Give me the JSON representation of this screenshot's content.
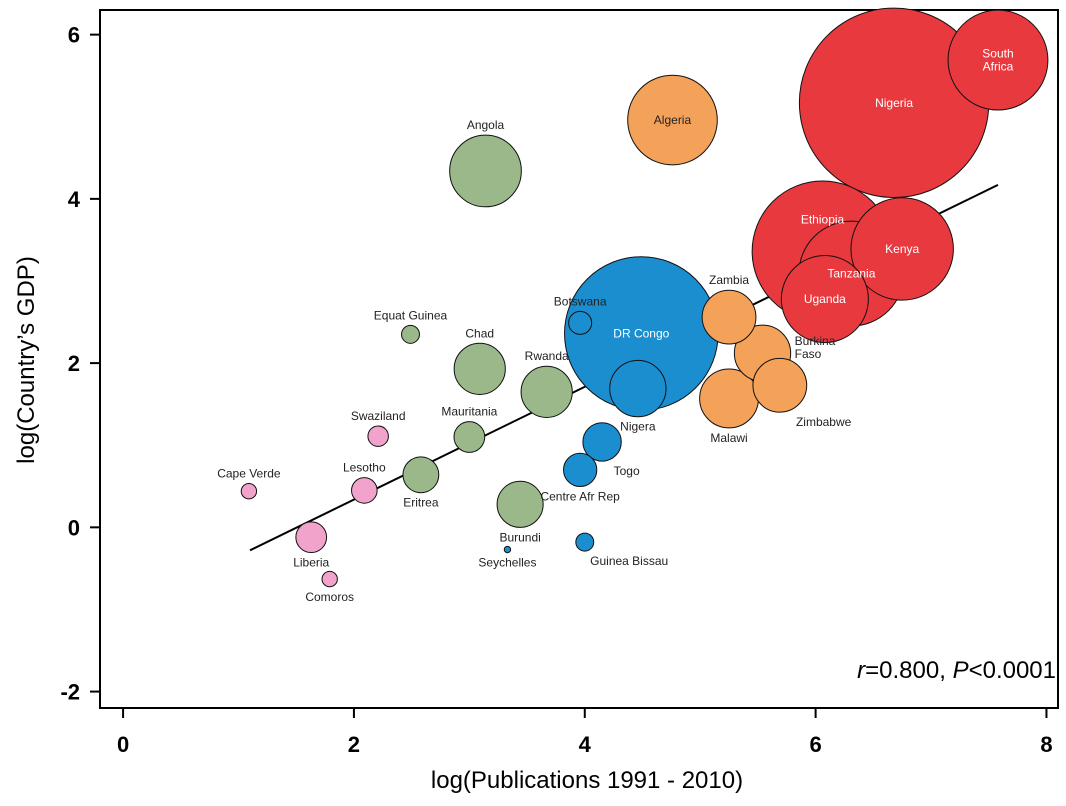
{
  "chart_data": {
    "type": "scatter",
    "xlabel": "log(Publications 1991 - 2010)",
    "ylabel": "log(Country’s GDP)",
    "xlim": [
      -0.2,
      8.1
    ],
    "ylim": [
      -2.2,
      6.3
    ],
    "x_ticks": [
      {
        "value": 0,
        "label": "0"
      },
      {
        "value": 2,
        "label": "2"
      },
      {
        "value": 4,
        "label": "4"
      },
      {
        "value": 6,
        "label": "6"
      },
      {
        "value": 8,
        "label": "8"
      }
    ],
    "y_ticks": [
      {
        "value": -2,
        "label": "-2"
      },
      {
        "value": 0,
        "label": "0"
      },
      {
        "value": 2,
        "label": "2"
      },
      {
        "value": 4,
        "label": "4"
      },
      {
        "value": 6,
        "label": "6"
      }
    ],
    "grid": false,
    "legend": "none",
    "trendline": {
      "x1": 1.1,
      "y1": -0.28,
      "x2": 7.58,
      "y2": 4.17
    },
    "stat_annotation": {
      "r_symbol": "r",
      "r_text": "=0.800, ",
      "p_symbol": "P",
      "p_text": "<0.0001"
    },
    "colors": {
      "red": "#e8393f",
      "orange": "#f4a25a",
      "green": "#9ab88a",
      "blue": "#1b8ed0",
      "pink": "#f1a3cc"
    },
    "points": [
      {
        "name": "Nigeria",
        "x": 6.68,
        "y": 5.17,
        "size": 7.4,
        "color": "red",
        "label_pos": "in"
      },
      {
        "name": "South Africa",
        "label_lines": [
          "South",
          "Africa"
        ],
        "x": 7.58,
        "y": 5.69,
        "size": 3.9,
        "color": "red",
        "label_pos": "in"
      },
      {
        "name": "Ethiopia",
        "x": 6.06,
        "y": 3.36,
        "size": 5.5,
        "color": "red",
        "label_pos": "in-up"
      },
      {
        "name": "Kenya",
        "x": 6.75,
        "y": 3.39,
        "size": 4.0,
        "color": "red",
        "label_pos": "in"
      },
      {
        "name": "Tanzania",
        "x": 6.31,
        "y": 3.09,
        "size": 4.1,
        "color": "red",
        "label_pos": "in"
      },
      {
        "name": "Uganda",
        "x": 6.08,
        "y": 2.78,
        "size": 3.4,
        "color": "red",
        "label_pos": "in"
      },
      {
        "name": "Algeria",
        "x": 4.76,
        "y": 4.96,
        "size": 3.5,
        "color": "orange",
        "label_pos": "in-dark"
      },
      {
        "name": "Zambia",
        "x": 5.25,
        "y": 2.56,
        "size": 2.1,
        "color": "orange",
        "label_pos": "above"
      },
      {
        "name": "Burkina Faso",
        "label_lines": [
          "Burkina",
          "Faso"
        ],
        "x": 5.54,
        "y": 2.12,
        "size": 2.2,
        "color": "orange",
        "label_pos": "right"
      },
      {
        "name": "Zimbabwe",
        "x": 5.69,
        "y": 1.73,
        "size": 2.1,
        "color": "orange",
        "label_pos": "below-right"
      },
      {
        "name": "Malawi",
        "x": 5.25,
        "y": 1.57,
        "size": 2.3,
        "color": "orange",
        "label_pos": "below"
      },
      {
        "name": "DR Congo",
        "x": 4.49,
        "y": 2.36,
        "size": 6.0,
        "color": "blue",
        "label_pos": "in"
      },
      {
        "name": "Nigera",
        "x": 4.46,
        "y": 1.69,
        "size": 2.2,
        "color": "blue",
        "label_pos": "below"
      },
      {
        "name": "Botswana",
        "x": 3.96,
        "y": 2.49,
        "size": 0.9,
        "color": "blue",
        "label_pos": "above"
      },
      {
        "name": "Togo",
        "x": 4.15,
        "y": 1.04,
        "size": 1.5,
        "color": "blue",
        "label_pos": "below-right"
      },
      {
        "name": "Centre Afr Rep",
        "x": 3.96,
        "y": 0.7,
        "size": 1.3,
        "color": "blue",
        "label_pos": "below"
      },
      {
        "name": "Guinea Bissau",
        "x": 4.0,
        "y": -0.18,
        "size": 0.7,
        "color": "blue",
        "label_pos": "below-right"
      },
      {
        "name": "Seychelles",
        "x": 3.33,
        "y": -0.27,
        "size": 0.25,
        "color": "blue",
        "label_pos": "below"
      },
      {
        "name": "Angola",
        "x": 3.14,
        "y": 4.34,
        "size": 2.8,
        "color": "green",
        "label_pos": "above"
      },
      {
        "name": "Chad",
        "x": 3.09,
        "y": 1.93,
        "size": 2.0,
        "color": "green",
        "label_pos": "above"
      },
      {
        "name": "Rwanda",
        "x": 3.67,
        "y": 1.65,
        "size": 2.0,
        "color": "green",
        "label_pos": "above"
      },
      {
        "name": "Mauritania",
        "x": 3.0,
        "y": 1.1,
        "size": 1.2,
        "color": "green",
        "label_pos": "above"
      },
      {
        "name": "Eritrea",
        "x": 2.58,
        "y": 0.64,
        "size": 1.4,
        "color": "green",
        "label_pos": "below"
      },
      {
        "name": "Burundi",
        "x": 3.44,
        "y": 0.28,
        "size": 1.8,
        "color": "green",
        "label_pos": "below"
      },
      {
        "name": "Equat Guinea",
        "x": 2.49,
        "y": 2.35,
        "size": 0.7,
        "color": "green",
        "label_pos": "above"
      },
      {
        "name": "Swaziland",
        "x": 2.21,
        "y": 1.11,
        "size": 0.8,
        "color": "pink",
        "label_pos": "above"
      },
      {
        "name": "Lesotho",
        "x": 2.09,
        "y": 0.45,
        "size": 1.0,
        "color": "pink",
        "label_pos": "above"
      },
      {
        "name": "Cape Verde",
        "x": 1.09,
        "y": 0.44,
        "size": 0.6,
        "color": "pink",
        "label_pos": "above"
      },
      {
        "name": "Liberia",
        "x": 1.63,
        "y": -0.12,
        "size": 1.2,
        "color": "pink",
        "label_pos": "below"
      },
      {
        "name": "Comoros",
        "x": 1.79,
        "y": -0.63,
        "size": 0.6,
        "color": "pink",
        "label_pos": "below"
      }
    ]
  }
}
